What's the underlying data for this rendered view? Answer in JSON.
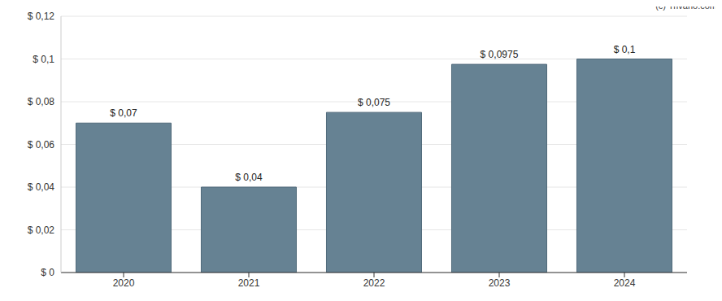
{
  "chart_data": {
    "type": "bar",
    "categories": [
      "2020",
      "2021",
      "2022",
      "2023",
      "2024"
    ],
    "values": [
      0.07,
      0.04,
      0.075,
      0.0975,
      0.1
    ],
    "value_labels": [
      "$ 0,07",
      "$ 0,04",
      "$ 0,075",
      "$ 0,0975",
      "$ 0,1"
    ],
    "data_labels": true,
    "color": "#668293",
    "ylim": [
      0,
      0.12
    ],
    "yticks": [
      {
        "value": 0,
        "label": "$ 0"
      },
      {
        "value": 0.02,
        "label": "$ 0,02"
      },
      {
        "value": 0.04,
        "label": "$ 0,04"
      },
      {
        "value": 0.06,
        "label": "$ 0,06"
      },
      {
        "value": 0.08,
        "label": "$ 0,08"
      },
      {
        "value": 0.1,
        "label": "$ 0,1"
      },
      {
        "value": 0.12,
        "label": "$ 0,12"
      }
    ],
    "grid": true,
    "annotations": [
      "(c) Trivano.com"
    ]
  }
}
